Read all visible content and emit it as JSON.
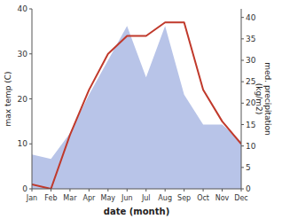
{
  "chart_data": {
    "type": "line",
    "xlabel": "date (month)",
    "ylabel": "max temp (C)",
    "y2label": "med. precipitation\n(kg/m2)",
    "categories": [
      "Jan",
      "Feb",
      "Mar",
      "Apr",
      "May",
      "Jun",
      "Jul",
      "Aug",
      "Sep",
      "Oct",
      "Nov",
      "Dec"
    ],
    "ylim": [
      0,
      40
    ],
    "yticks": [
      0,
      10,
      20,
      30,
      40
    ],
    "y2lim": [
      0,
      42
    ],
    "y2ticks": [
      0,
      5,
      10,
      15,
      20,
      25,
      30,
      35,
      40
    ],
    "grid": false,
    "series": [
      {
        "type": "area",
        "axis": "y2",
        "color": "#b8c4e8",
        "values": [
          8,
          7,
          13,
          22,
          30,
          38,
          26,
          38,
          22,
          15,
          15,
          11
        ]
      },
      {
        "type": "line",
        "color": "#c0392b",
        "values": [
          1,
          0,
          12,
          22,
          30,
          34,
          34,
          37,
          37,
          22,
          15,
          10
        ]
      }
    ]
  }
}
